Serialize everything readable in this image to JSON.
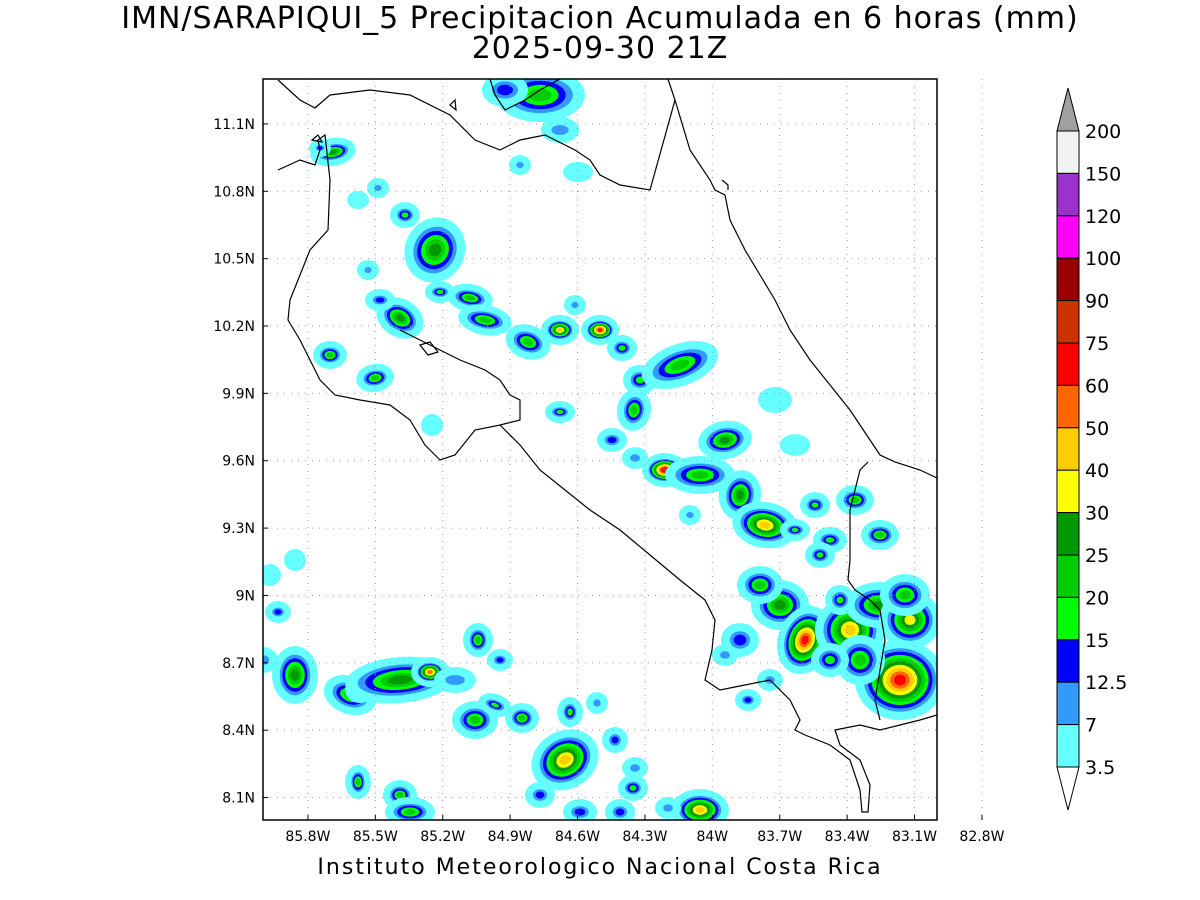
{
  "title": {
    "line1": "IMN/SARAPIQUI_5 Precipitacion Acumulada en 6 horas (mm)",
    "line2": "2025-09-30 21Z"
  },
  "footer": "Instituto Meteorologico Nacional Costa Rica",
  "map": {
    "lon_range": [
      -86.0,
      -83.0
    ],
    "lat_range": [
      8.0,
      11.3
    ],
    "x_ticks": [
      {
        "value": -85.8,
        "label": "85.8W"
      },
      {
        "value": -85.5,
        "label": "85.5W"
      },
      {
        "value": -85.2,
        "label": "85.2W"
      },
      {
        "value": -84.9,
        "label": "84.9W"
      },
      {
        "value": -84.6,
        "label": "84.6W"
      },
      {
        "value": -84.3,
        "label": "84.3W"
      },
      {
        "value": -84.0,
        "label": "84W"
      },
      {
        "value": -83.7,
        "label": "83.7W"
      },
      {
        "value": -83.4,
        "label": "83.4W"
      },
      {
        "value": -83.1,
        "label": "83.1W"
      },
      {
        "value": -82.8,
        "label": "82.8W"
      }
    ],
    "y_ticks": [
      {
        "value": 11.1,
        "label": "11.1N"
      },
      {
        "value": 10.8,
        "label": "10.8N"
      },
      {
        "value": 10.5,
        "label": "10.5N"
      },
      {
        "value": 10.2,
        "label": "10.2N"
      },
      {
        "value": 9.9,
        "label": "9.9N"
      },
      {
        "value": 9.6,
        "label": "9.6N"
      },
      {
        "value": 9.3,
        "label": "9.3N"
      },
      {
        "value": 9.0,
        "label": "9N"
      },
      {
        "value": 8.7,
        "label": "8.7N"
      },
      {
        "value": 8.4,
        "label": "8.4N"
      },
      {
        "value": 8.1,
        "label": "8.1N"
      }
    ],
    "grid": "dotted"
  },
  "colorbar": {
    "levels": [
      {
        "label": "3.5",
        "color": "#66ffff"
      },
      {
        "label": "7",
        "color": "#3399ff"
      },
      {
        "label": "12.5",
        "color": "#0000ff"
      },
      {
        "label": "15",
        "color": "#00ff00"
      },
      {
        "label": "20",
        "color": "#00cc00"
      },
      {
        "label": "25",
        "color": "#009900"
      },
      {
        "label": "30",
        "color": "#ffff00"
      },
      {
        "label": "40",
        "color": "#ffcc00"
      },
      {
        "label": "50",
        "color": "#ff6600"
      },
      {
        "label": "60",
        "color": "#ff0000"
      },
      {
        "label": "75",
        "color": "#cc3300"
      },
      {
        "label": "90",
        "color": "#990000"
      },
      {
        "label": "100",
        "color": "#ff00ff"
      },
      {
        "label": "120",
        "color": "#9933cc"
      },
      {
        "label": "150",
        "color": "#f2f2f2"
      },
      {
        "label": "200",
        "color": "#a0a0a0"
      }
    ],
    "top_arrow_color": "#a0a0a0",
    "bottom_arrow_color": "#ffffff"
  }
}
